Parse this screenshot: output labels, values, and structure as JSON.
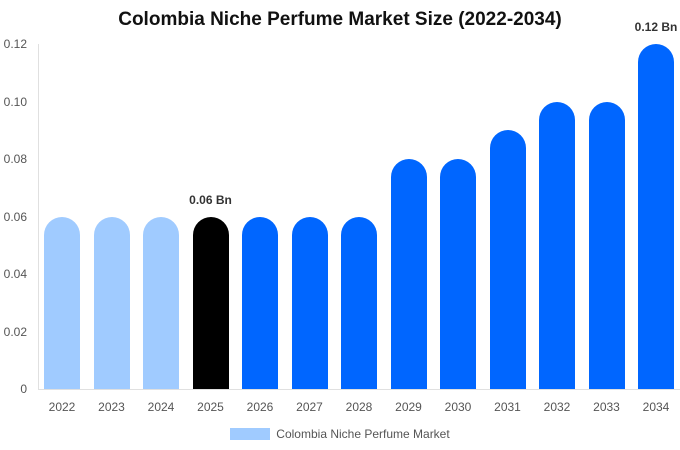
{
  "chart_data": {
    "type": "bar",
    "title": "Colombia Niche Perfume Market Size (2022-2034)",
    "xlabel": "",
    "ylabel": "",
    "categories": [
      "2022",
      "2023",
      "2024",
      "2025",
      "2026",
      "2027",
      "2028",
      "2029",
      "2030",
      "2031",
      "2032",
      "2033",
      "2034"
    ],
    "series": [
      {
        "name": "Colombia Niche Perfume Market",
        "values": [
          0.06,
          0.06,
          0.06,
          0.06,
          0.06,
          0.06,
          0.06,
          0.08,
          0.08,
          0.09,
          0.1,
          0.1,
          0.12
        ]
      }
    ],
    "ylim": [
      0,
      0.12
    ],
    "yticks": [
      "0",
      "0.02",
      "0.04",
      "0.06",
      "0.08",
      "0.10",
      "0.12"
    ],
    "grid": false,
    "legend_position": "bottom",
    "annotations": [
      {
        "category": "2025",
        "text": "0.06 Bn"
      },
      {
        "category": "2034",
        "text": "0.12 Bn"
      }
    ],
    "bar_colors": [
      "#a0cbff",
      "#a0cbff",
      "#a0cbff",
      "#000000",
      "#0066ff",
      "#0066ff",
      "#0066ff",
      "#0066ff",
      "#0066ff",
      "#0066ff",
      "#0066ff",
      "#0066ff",
      "#0066ff"
    ]
  },
  "legend": {
    "label": "Colombia Niche Perfume Market",
    "color": "#a0cbff"
  }
}
